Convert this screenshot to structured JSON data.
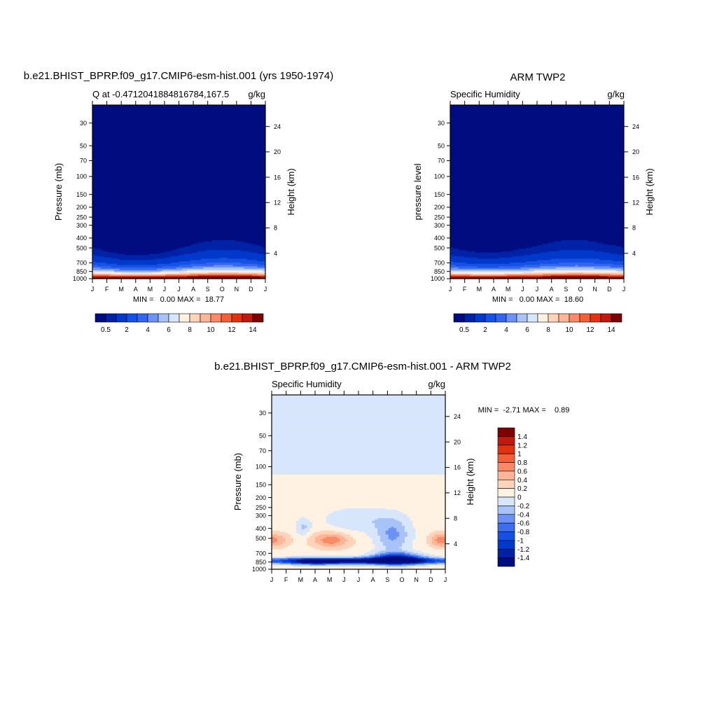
{
  "colors": {
    "q_levels": [
      "#000c80",
      "#0022a6",
      "#0039cc",
      "#1452e6",
      "#3366f0",
      "#6b93f5",
      "#a8c3f7",
      "#d8e6fb",
      "#fff2e2",
      "#fdd4b9",
      "#fcb596",
      "#fa8a66",
      "#f35f37",
      "#e13212",
      "#bf1a0c",
      "#7f0000"
    ],
    "diff_levels": [
      "#000c80",
      "#0022a6",
      "#0039cc",
      "#1452e6",
      "#3d6ef0",
      "#6b93f5",
      "#a8c3f7",
      "#d8e6fb",
      "#fff2e2",
      "#fdd4b9",
      "#fcb596",
      "#fa8a66",
      "#f35f37",
      "#e13212",
      "#bf1a0c",
      "#7f0000"
    ]
  },
  "months": [
    "J",
    "F",
    "M",
    "A",
    "M",
    "J",
    "J",
    "A",
    "S",
    "O",
    "N",
    "D",
    "J"
  ],
  "pressure_ticks": [
    "30",
    "50",
    "70",
    "100",
    "150",
    "200",
    "250",
    "300",
    "400",
    "500",
    "700",
    "850",
    "1000"
  ],
  "pressure_values": [
    30,
    50,
    70,
    100,
    150,
    200,
    250,
    300,
    400,
    500,
    700,
    850,
    1000
  ],
  "height_ticks": [
    "24",
    "20",
    "16",
    "12",
    "8",
    "4"
  ],
  "height_values": [
    24,
    20,
    16,
    12,
    8,
    4
  ],
  "panel1": {
    "main_title": "b.e21.BHIST_BPRP.f09_g17.CMIP6-esm-hist.001 (yrs 1950-1974)",
    "left_sub": "Q at -0.4712041884816784,167.5",
    "right_sub": "g/kg",
    "ylabel": "Pressure (mb)",
    "ylabel_right": "Height (km)",
    "stats": "MIN =   0.00 MAX =  18.77"
  },
  "panel2": {
    "main_title": "ARM TWP2",
    "left_sub": "Specific Humidity",
    "right_sub": "g/kg",
    "ylabel": "pressure level",
    "ylabel_right": "Height (km)",
    "stats": "MIN =   0.00 MAX =  18.60"
  },
  "panel3": {
    "main_title": "b.e21.BHIST_BPRP.f09_g17.CMIP6-esm-hist.001 - ARM TWP2",
    "left_sub": "Specific Humidity",
    "right_sub": "g/kg",
    "ylabel": "Pressure (mb)",
    "ylabel_right": "Height (km)",
    "stats": "MIN =  -2.71 MAX =    0.89"
  },
  "colorbar_q": {
    "labels": [
      "0.5",
      "2",
      "4",
      "6",
      "8",
      "10",
      "12",
      "14"
    ]
  },
  "colorbar_diff": {
    "labels": [
      "1.4",
      "1.2",
      "1",
      "0.8",
      "0.6",
      "0.4",
      "0.2",
      "0",
      "-0.2",
      "-0.4",
      "-0.6",
      "-0.8",
      "-1",
      "-1.2",
      "-1.4"
    ]
  },
  "chart_data": [
    {
      "type": "heatmap",
      "title": "b.e21.BHIST_BPRP.f09_g17.CMIP6-esm-hist.001 (yrs 1950-1974)",
      "xlabel": "",
      "ylabel": "Pressure (mb)",
      "x": [
        "J",
        "F",
        "M",
        "A",
        "M",
        "J",
        "J",
        "A",
        "S",
        "O",
        "N",
        "D",
        "J"
      ],
      "y_scale": "log",
      "ylim": [
        1000,
        20
      ],
      "levels": [
        0.5,
        1,
        2,
        3,
        4,
        5,
        6,
        7,
        8,
        9,
        10,
        11,
        12,
        13,
        14
      ],
      "variable_units": "g/kg",
      "min": 0.0,
      "max": 18.77,
      "field": "model"
    },
    {
      "type": "heatmap",
      "title": "ARM TWP2",
      "xlabel": "",
      "ylabel": "pressure level",
      "x": [
        "J",
        "F",
        "M",
        "A",
        "M",
        "J",
        "J",
        "A",
        "S",
        "O",
        "N",
        "D",
        "J"
      ],
      "y_scale": "log",
      "ylim": [
        1000,
        20
      ],
      "levels": [
        0.5,
        1,
        2,
        3,
        4,
        5,
        6,
        7,
        8,
        9,
        10,
        11,
        12,
        13,
        14
      ],
      "variable_units": "g/kg",
      "min": 0.0,
      "max": 18.6,
      "field": "obs"
    },
    {
      "type": "heatmap",
      "title": "b.e21.BHIST_BPRP.f09_g17.CMIP6-esm-hist.001 - ARM TWP2",
      "xlabel": "",
      "ylabel": "Pressure (mb)",
      "x": [
        "J",
        "F",
        "M",
        "A",
        "M",
        "J",
        "J",
        "A",
        "S",
        "O",
        "N",
        "D",
        "J"
      ],
      "y_scale": "log",
      "ylim": [
        1000,
        20
      ],
      "levels": [
        -1.4,
        -1.2,
        -1,
        -0.8,
        -0.6,
        -0.4,
        -0.2,
        0,
        0.2,
        0.4,
        0.6,
        0.8,
        1,
        1.2,
        1.4
      ],
      "variable_units": "g/kg",
      "min": -2.71,
      "max": 0.89,
      "field": "diff"
    }
  ]
}
